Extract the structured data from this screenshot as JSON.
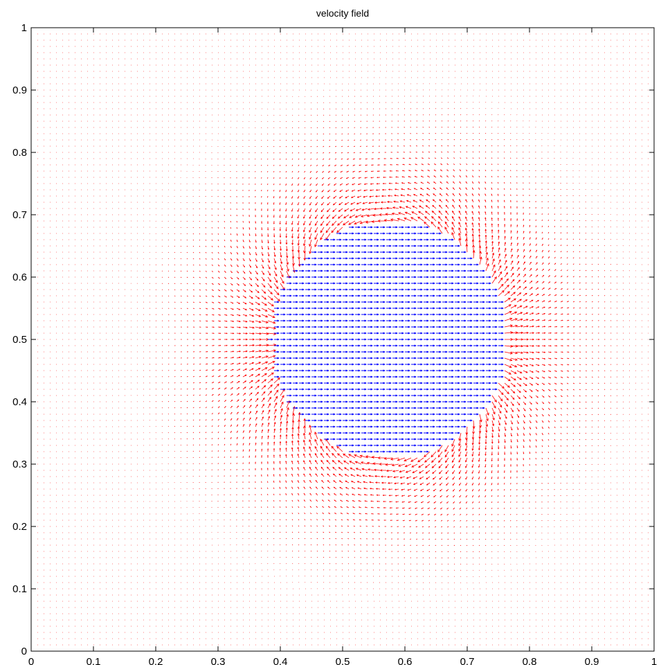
{
  "chart_data": {
    "type": "quiver",
    "title": "velocity field",
    "xlabel": "",
    "ylabel": "",
    "xlim": [
      0,
      1
    ],
    "ylim": [
      0,
      1
    ],
    "xticks": [
      "0",
      "0.1",
      "0.2",
      "0.3",
      "0.4",
      "0.5",
      "0.6",
      "0.7",
      "0.8",
      "0.9",
      "1"
    ],
    "yticks": [
      "0",
      "0.1",
      "0.2",
      "0.3",
      "0.4",
      "0.5",
      "0.6",
      "0.7",
      "0.8",
      "0.9",
      "1"
    ],
    "grid": false,
    "series": [
      {
        "region": "inside circle",
        "color": "#0000ff",
        "field": "uniform flow in +x direction",
        "u": 1,
        "v": 0
      },
      {
        "region": "outside circle",
        "color": "#ff0000",
        "field": "dipole (doublet) field, decaying with distance from center"
      }
    ],
    "circle": {
      "center": [
        0.57,
        0.5
      ],
      "radius": 0.19
    },
    "grid_spacing": 0.01
  }
}
